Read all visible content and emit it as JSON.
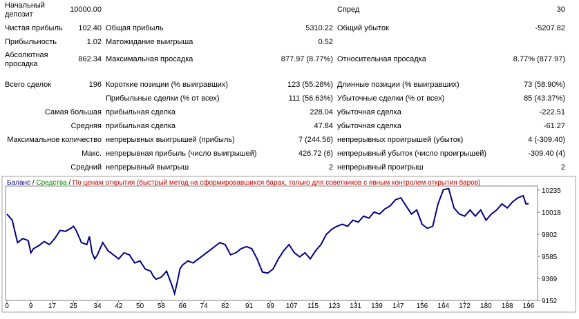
{
  "report": {
    "rows": [
      [
        "Начальный депозит",
        "10000.00",
        null,
        null,
        "Спред",
        "30"
      ],
      [
        "Чистая прибыль",
        "102.40",
        "Общая прибыль",
        "5310.22",
        "Общий убыток",
        "-5207.82"
      ],
      [
        "Прибыльность",
        "1.02",
        "Матожидание выигрыша",
        "0.52",
        null,
        null
      ],
      [
        "Абсолютная просадка",
        "862.34",
        "Максимальная просадка",
        "877.97 (8.77%)",
        "Относительная просадка",
        "8.77% (877.97)"
      ],
      [
        "Всего сделок",
        "196",
        "Короткие позиции (% выигравших)",
        "123 (55.28%)",
        "Длинные позиции (% выигравших)",
        "73 (58.90%)"
      ],
      [
        null,
        null,
        "Прибыльные сделки (% от всех)",
        "111 (56.63%)",
        "Убыточные сделки (% от всех)",
        "85 (43.37%)"
      ],
      [
        null,
        "Самая большая",
        "прибыльная сделка",
        "228.04",
        "убыточная сделка",
        "-222.51"
      ],
      [
        null,
        "Средняя",
        "прибыльная сделка",
        "47.84",
        "убыточная сделка",
        "-61.27"
      ],
      [
        null,
        "Максимальное количество",
        "непрерывных выигрышей (прибыль)",
        "7 (244.56)",
        "непрерывных проигрышей (убыток)",
        "4 (-309.40)"
      ],
      [
        null,
        "Макс.",
        "непрерывная прибыль (число выигрышей)",
        "426.72 (6)",
        "непрерывный убыток (число проигрышей)",
        "-309.40 (4)"
      ],
      [
        null,
        "Средний",
        "непрерывный выигрыш",
        "2",
        "непрерывный проигрыш",
        "2"
      ]
    ]
  },
  "chart_data": {
    "type": "line",
    "legend": [
      {
        "text": "Баланс",
        "color": "#000080"
      },
      {
        "text": "Средства",
        "color": "#008000"
      },
      {
        "text": "По ценам открытия (быстрый метод на сформировавшихся барах, только для советников с явным контролем открытия баров)",
        "color": "#c00000"
      }
    ],
    "x": [
      0,
      2,
      4,
      6,
      8,
      9,
      10,
      12,
      14,
      16,
      18,
      20,
      22,
      24,
      25,
      26,
      28,
      30,
      31,
      32,
      33,
      34,
      36,
      38,
      40,
      42,
      44,
      46,
      48,
      50,
      52,
      54,
      55,
      56,
      58,
      60,
      62,
      63,
      64,
      65,
      66,
      68,
      70,
      72,
      74,
      76,
      78,
      80,
      82,
      84,
      86,
      88,
      90,
      92,
      94,
      96,
      98,
      100,
      102,
      104,
      106,
      108,
      110,
      112,
      114,
      116,
      118,
      120,
      122,
      124,
      126,
      128,
      130,
      132,
      134,
      136,
      138,
      140,
      142,
      144,
      146,
      148,
      150,
      152,
      154,
      156,
      158,
      160,
      162,
      164,
      166,
      168,
      170,
      172,
      174,
      176,
      178,
      180,
      182,
      184,
      186,
      188,
      190,
      192,
      194,
      195,
      196
    ],
    "series": [
      {
        "name": "Баланс",
        "color": "#000080",
        "values": [
          10000,
          9940,
          9720,
          9760,
          9740,
          9620,
          9660,
          9690,
          9730,
          9700,
          9760,
          9840,
          9830,
          9860,
          9880,
          9840,
          9720,
          9700,
          9780,
          9620,
          9560,
          9600,
          9720,
          9640,
          9600,
          9560,
          9620,
          9600,
          9520,
          9540,
          9460,
          9440,
          9390,
          9360,
          9380,
          9440,
          9300,
          9220,
          9330,
          9460,
          9500,
          9540,
          9520,
          9560,
          9600,
          9640,
          9680,
          9720,
          9700,
          9600,
          9620,
          9660,
          9680,
          9660,
          9560,
          9430,
          9420,
          9460,
          9560,
          9640,
          9700,
          9620,
          9580,
          9620,
          9560,
          9640,
          9700,
          9800,
          9850,
          9880,
          9900,
          9880,
          9940,
          9920,
          9980,
          9960,
          10020,
          10000,
          10050,
          10080,
          10140,
          10160,
          10080,
          10000,
          10040,
          9900,
          9860,
          9880,
          10100,
          10240,
          10250,
          10060,
          10000,
          9980,
          10040,
          9980,
          10040,
          9940,
          10000,
          10040,
          10100,
          10060,
          10120,
          10160,
          10180,
          10100,
          10102
        ]
      }
    ],
    "xlim": [
      0,
      196
    ],
    "ylim": [
      9098,
      10316
    ],
    "xticks": [
      0,
      9,
      17,
      25,
      34,
      42,
      50,
      58,
      66,
      74,
      82,
      91,
      99,
      107,
      115,
      123,
      131,
      139,
      147,
      156,
      164,
      172,
      180,
      188,
      196
    ],
    "yticks": [
      9152,
      9369,
      9585,
      9802,
      10018,
      10235
    ]
  }
}
